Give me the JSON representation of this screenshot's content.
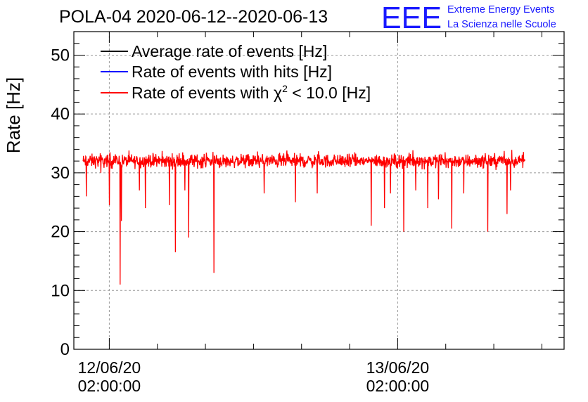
{
  "chart_data": {
    "type": "line",
    "title": "POLA-04 2020-06-12--2020-06-13",
    "ylabel": "Rate [Hz]",
    "xlabel": "",
    "ylim": [
      0,
      54
    ],
    "yticks": [
      0,
      10,
      20,
      30,
      40,
      50
    ],
    "xticks": [
      {
        "line1": "12/06/20",
        "line2": "02:00:00",
        "hour": 2
      },
      {
        "line1": "13/06/20",
        "line2": "02:00:00",
        "hour": 26
      }
    ],
    "xlim_hours": [
      -0.95,
      39.85
    ],
    "grid": true,
    "legend": {
      "placement": "top-left",
      "entries": [
        {
          "label": "Average rate of events [Hz]",
          "color": "#000000"
        },
        {
          "label": "Rate of events with hits [Hz]",
          "color": "#0000ff"
        },
        {
          "label_prefix": "Rate of events with ",
          "label_symbol": "χ",
          "label_sup": "2",
          "label_suffix": " < 10.0 [Hz]",
          "color": "#ff0000"
        }
      ]
    },
    "series": [
      {
        "name": "Rate of events with χ2 < 10.0 [Hz]",
        "color": "#ff0000",
        "time_range_hours": [
          -0.2,
          36.6
        ],
        "baseline": 32,
        "band": [
          30.3,
          33.7
        ],
        "dips": [
          {
            "hour": 0.1,
            "value": 26
          },
          {
            "hour": 1.3,
            "value": 30
          },
          {
            "hour": 2.0,
            "value": 24.5
          },
          {
            "hour": 2.9,
            "value": 11
          },
          {
            "hour": 3.0,
            "value": 21.8
          },
          {
            "hour": 4.5,
            "value": 27
          },
          {
            "hour": 5.0,
            "value": 24
          },
          {
            "hour": 7.0,
            "value": 24.5
          },
          {
            "hour": 7.5,
            "value": 16.5
          },
          {
            "hour": 8.3,
            "value": 27
          },
          {
            "hour": 8.6,
            "value": 19
          },
          {
            "hour": 10.7,
            "value": 13
          },
          {
            "hour": 14.9,
            "value": 26.5
          },
          {
            "hour": 17.5,
            "value": 25
          },
          {
            "hour": 19.3,
            "value": 26.5
          },
          {
            "hour": 23.8,
            "value": 21
          },
          {
            "hour": 24.9,
            "value": 24
          },
          {
            "hour": 25.4,
            "value": 26.5
          },
          {
            "hour": 26.5,
            "value": 20
          },
          {
            "hour": 27.5,
            "value": 27
          },
          {
            "hour": 28.5,
            "value": 24
          },
          {
            "hour": 29.4,
            "value": 25.5
          },
          {
            "hour": 30.5,
            "value": 20.5
          },
          {
            "hour": 31.5,
            "value": 26.5
          },
          {
            "hour": 33.5,
            "value": 20
          },
          {
            "hour": 35.1,
            "value": 23
          },
          {
            "hour": 35.4,
            "value": 27
          }
        ]
      }
    ]
  },
  "logo": {
    "letters": "EEE",
    "line1": "Extreme Energy Events",
    "line2": "La Scienza nelle Scuole",
    "color": "#1a1aff"
  }
}
